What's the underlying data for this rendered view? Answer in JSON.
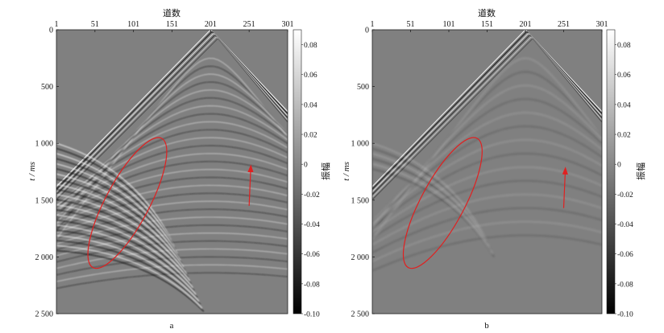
{
  "panels": [
    {
      "id": "a",
      "caption": "a",
      "x_axis_title": "道数",
      "x_ticks": [
        "1",
        "51",
        "101",
        "151",
        "201",
        "251",
        "301"
      ],
      "x_tick_values": [
        1,
        51,
        101,
        151,
        201,
        251,
        301
      ],
      "x_range": [
        1,
        301
      ],
      "y_axis_title": "t / ms",
      "y_ticks": [
        "0",
        "500",
        "1 000",
        "1 500",
        "2 000",
        "2 500"
      ],
      "y_tick_values": [
        0,
        500,
        1000,
        1500,
        2000,
        2500
      ],
      "y_range": [
        0,
        2500
      ],
      "colorbar_label": "振幅",
      "colorbar_ticks": [
        "0.08",
        "0.06",
        "0.04",
        "0.02",
        "0",
        "-0.02",
        "-0.04",
        "-0.06",
        "-0.08",
        "-0.10"
      ],
      "colorbar_values": [
        0.08,
        0.06,
        0.04,
        0.02,
        0,
        -0.02,
        -0.04,
        -0.06,
        -0.08,
        -0.1
      ],
      "colorbar_range": [
        -0.1,
        0.09
      ],
      "annotation_ellipse": {
        "center_trace": 93,
        "center_time_ms": 1525,
        "color": "#e02020"
      },
      "annotation_arrow": {
        "trace": 251,
        "from_time_ms": 1550,
        "to_time_ms": 1220,
        "color": "#e02020"
      },
      "noise_level": "strong"
    },
    {
      "id": "b",
      "caption": "b",
      "x_axis_title": "道数",
      "x_ticks": [
        "1",
        "51",
        "101",
        "151",
        "201",
        "251",
        "301"
      ],
      "x_tick_values": [
        1,
        51,
        101,
        151,
        201,
        251,
        301
      ],
      "x_range": [
        1,
        301
      ],
      "y_axis_title": "t / ms",
      "y_ticks": [
        "0",
        "500",
        "1 000",
        "1 500",
        "2 000",
        "2 500"
      ],
      "y_tick_values": [
        0,
        500,
        1000,
        1500,
        2000,
        2500
      ],
      "y_range": [
        0,
        2500
      ],
      "colorbar_label": "振幅",
      "colorbar_ticks": [
        "0.08",
        "0.06",
        "0.04",
        "0.02",
        "0",
        "-0.02",
        "-0.04",
        "-0.06",
        "-0.08",
        "-0.10"
      ],
      "colorbar_values": [
        0.08,
        0.06,
        0.04,
        0.02,
        0,
        -0.02,
        -0.04,
        -0.06,
        -0.08,
        -0.1
      ],
      "colorbar_range": [
        -0.1,
        0.09
      ],
      "annotation_ellipse": {
        "center_trace": 93,
        "center_time_ms": 1525,
        "color": "#e02020"
      },
      "annotation_arrow": {
        "trace": 251,
        "from_time_ms": 1570,
        "to_time_ms": 1240,
        "color": "#e02020"
      },
      "noise_level": "weak"
    }
  ],
  "colors": {
    "background_gray": "#808080",
    "ellipse": "#e02020",
    "arrow": "#e02020"
  }
}
